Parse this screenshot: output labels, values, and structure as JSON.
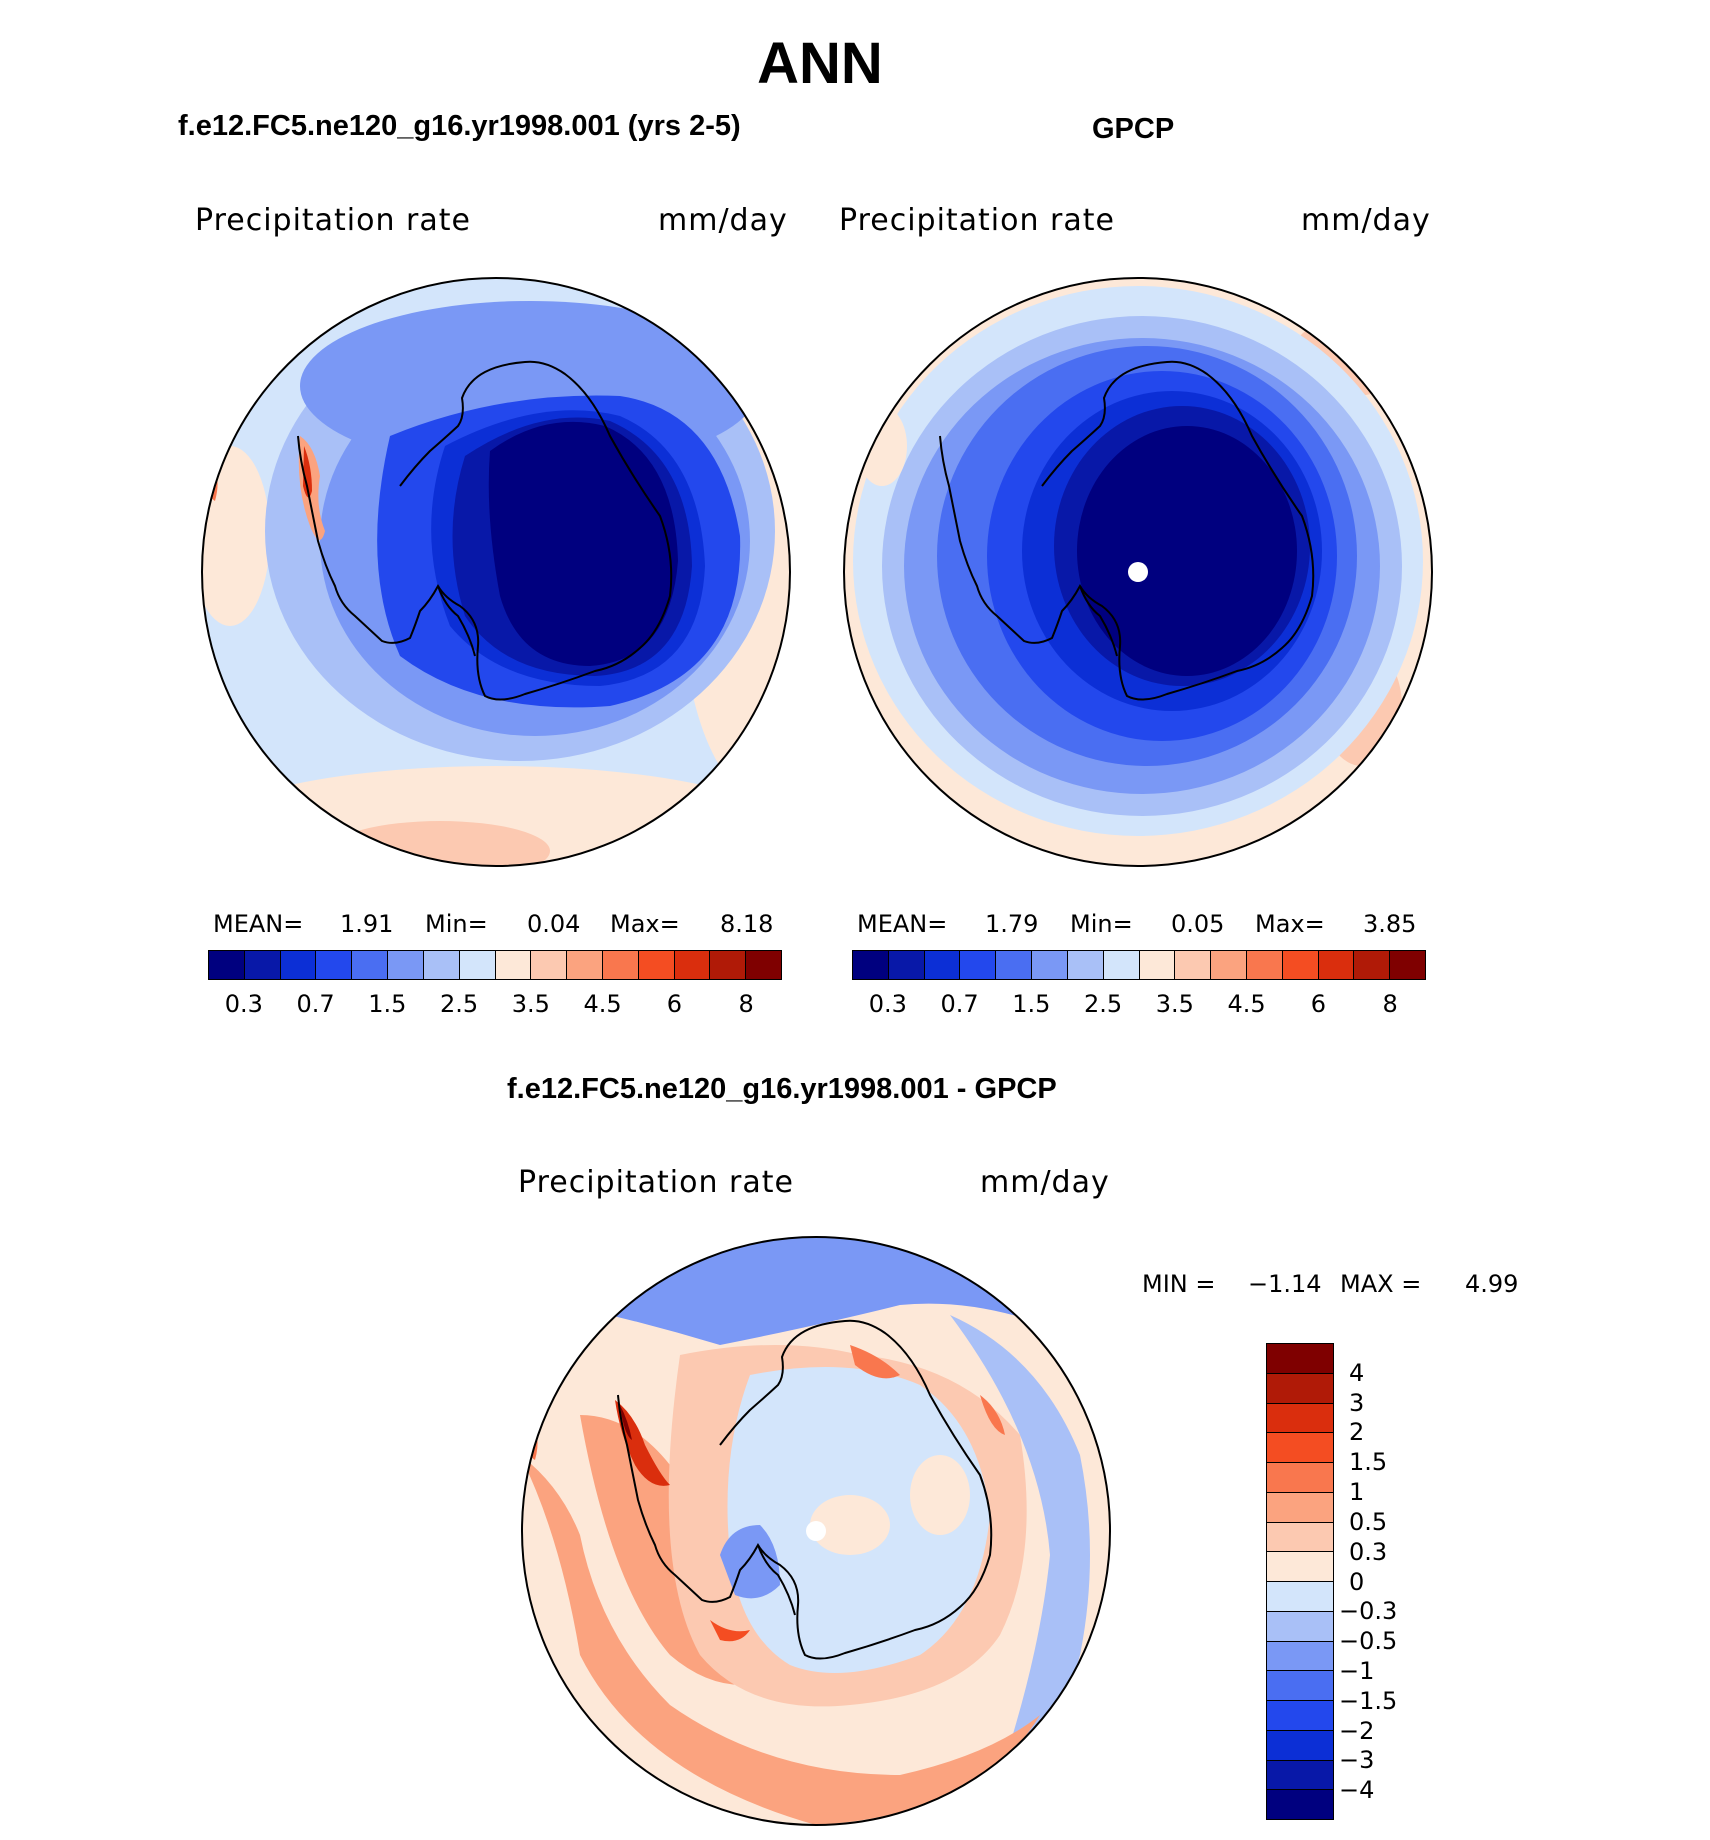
{
  "figure": {
    "season": "ANN",
    "panel1": {
      "title": "f.e12.FC5.ne120_g16.yr1998.001 (yrs 2-5)",
      "variable": "Precipitation rate",
      "units": "mm/day",
      "mean_label": "MEAN=",
      "mean": "1.91",
      "min_label": "Min=",
      "min": "0.04",
      "max_label": "Max=",
      "max": "8.18"
    },
    "panel2": {
      "title": "GPCP",
      "variable": "Precipitation rate",
      "units": "mm/day",
      "mean_label": "MEAN=",
      "mean": "1.79",
      "min_label": "Min=",
      "min": "0.05",
      "max_label": "Max=",
      "max": "3.85"
    },
    "panel3": {
      "title": "f.e12.FC5.ne120_g16.yr1998.001 - GPCP",
      "variable": "Precipitation rate",
      "units": "mm/day",
      "min_label": "MIN =",
      "min": "−1.14",
      "max_label": "MAX =",
      "max": "4.99"
    }
  },
  "colorbar_abs": {
    "tick_labels": [
      "0.3",
      "0.7",
      "1.5",
      "2.5",
      "3.5",
      "4.5",
      "6",
      "8"
    ],
    "colors": [
      "#00007f",
      "#0818a8",
      "#0c2fd6",
      "#2348ed",
      "#4a6ef2",
      "#7a98f5",
      "#a9c0f7",
      "#d3e5fb",
      "#fde8d8",
      "#fcc9b1",
      "#fba37f",
      "#f9774e",
      "#f44d22",
      "#da2e0d",
      "#b01a07",
      "#7f0000"
    ]
  },
  "colorbar_diff": {
    "tick_labels": [
      "4",
      "3",
      "2",
      "1.5",
      "1",
      "0.5",
      "0.3",
      "0",
      "−0.3",
      "−0.5",
      "−1",
      "−1.5",
      "−2",
      "−3",
      "−4"
    ],
    "colors": [
      "#7f0000",
      "#b01a07",
      "#da2e0d",
      "#f44d22",
      "#f9774e",
      "#fba37f",
      "#fcc9b1",
      "#fde8d8",
      "#d3e5fb",
      "#a9c0f7",
      "#7a98f5",
      "#4a6ef2",
      "#2348ed",
      "#0c2fd6",
      "#0818a8",
      "#00007f"
    ]
  }
}
